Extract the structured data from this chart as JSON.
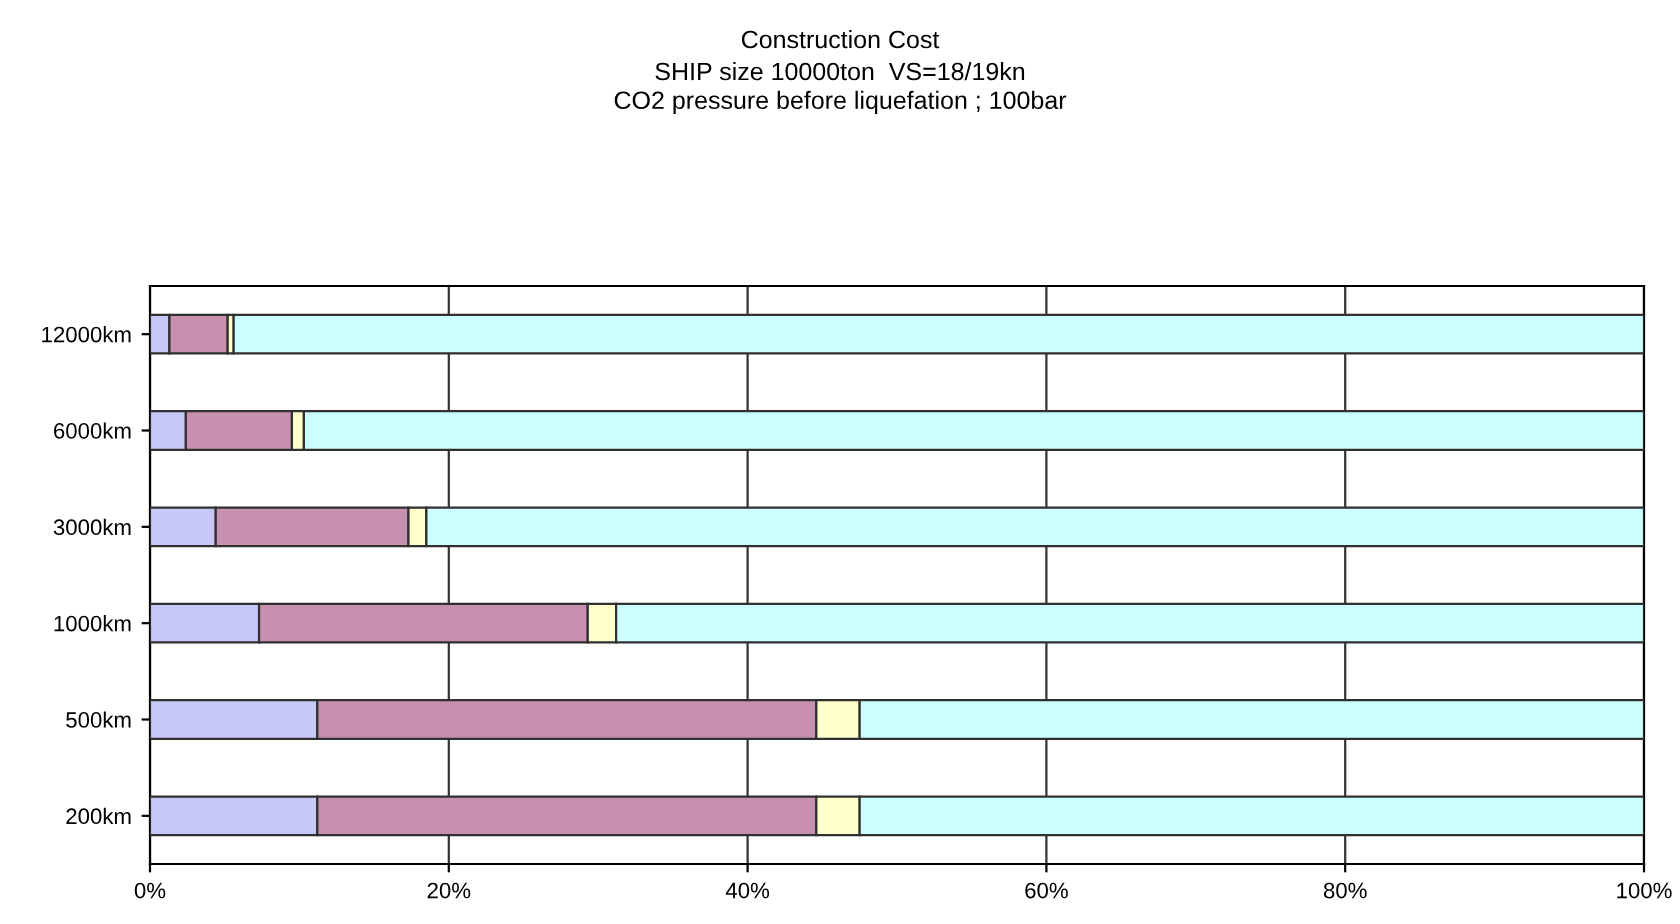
{
  "chart_data": {
    "type": "bar",
    "orientation": "horizontal",
    "stacked": true,
    "title": "Construction Cost",
    "subtitle": "SHIP size 10000ton  VS=18/19kn\nCO2 pressure before liquefation ; 100bar",
    "categories": [
      "12000km",
      "6000km",
      "3000km",
      "1000km",
      "500km",
      "200km"
    ],
    "series": [
      {
        "color": "#c8c8f8",
        "values": [
          1.3,
          2.4,
          4.4,
          7.3,
          11.2,
          11.2
        ]
      },
      {
        "color": "#c890b0",
        "values": [
          3.9,
          7.1,
          12.9,
          22.0,
          33.4,
          33.4
        ]
      },
      {
        "color": "#ffffcc",
        "values": [
          0.4,
          0.8,
          1.2,
          1.9,
          2.9,
          2.9
        ]
      },
      {
        "color": "#ccffff",
        "values": [
          94.4,
          89.7,
          81.5,
          68.8,
          52.5,
          52.5
        ]
      }
    ],
    "xlim": [
      0,
      100
    ],
    "xticks": [
      {
        "value": 0,
        "label": "0%"
      },
      {
        "value": 20,
        "label": "20%"
      },
      {
        "value": 40,
        "label": "40%"
      },
      {
        "value": 60,
        "label": "60%"
      },
      {
        "value": 80,
        "label": "80%"
      },
      {
        "value": 100,
        "label": "100%"
      }
    ],
    "grid": "x",
    "legend": false
  }
}
